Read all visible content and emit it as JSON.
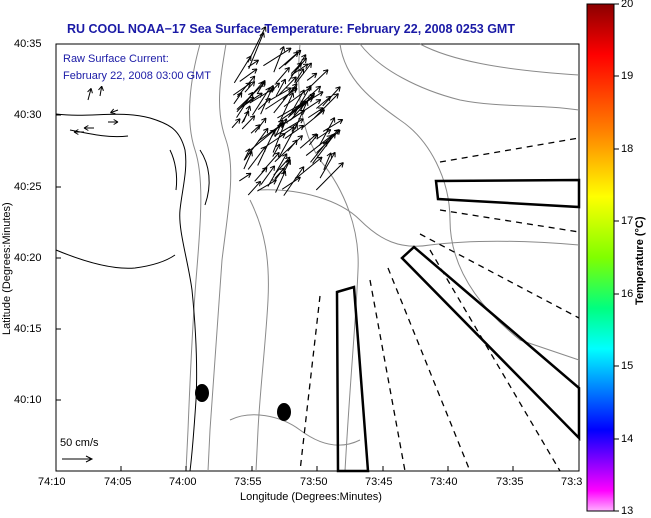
{
  "title": "RU COOL  NOAA−17  Sea Surface Temperature:  February 22, 2008 0253 GMT",
  "current_legend": {
    "line1": "Raw Surface Current:",
    "line2": "February 22, 2008 03:00 GMT"
  },
  "scale_label": "50 cm/s",
  "y_axis": {
    "label": "Latitude (Degrees:Minutes)",
    "ticks": [
      "40:35",
      "40:30",
      "40:25",
      "40:20",
      "40:15",
      "40:10"
    ]
  },
  "x_axis": {
    "label": "Longitude (Degrees:Minutes)",
    "ticks": [
      "74:10",
      "74:05",
      "74:00",
      "73:55",
      "73:50",
      "73:45",
      "73:40",
      "73:35",
      "73:3"
    ]
  },
  "colorbar": {
    "label": "Temperature (°C)",
    "ticks": [
      "20",
      "19",
      "18",
      "17",
      "16",
      "15",
      "14",
      "13"
    ],
    "colors": [
      "#8b0000",
      "#ff0000",
      "#ff8000",
      "#ffff00",
      "#80ff00",
      "#00ff80",
      "#00ffff",
      "#0080ff",
      "#0000ff",
      "#8000ff",
      "#ff00ff",
      "#ffb0ff"
    ]
  }
}
